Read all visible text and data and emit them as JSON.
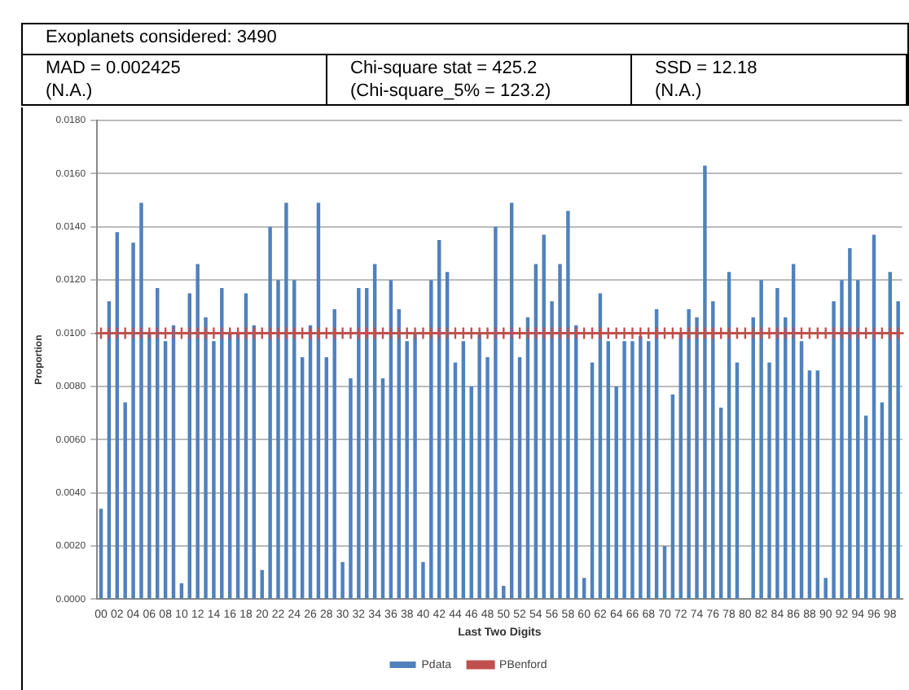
{
  "chart_data": {
    "type": "bar",
    "xlabel": "Last Two Digits",
    "ylabel": "Proportion",
    "annotations": [
      "Exoplanets considered: 3490",
      "MAD = 0.002425",
      "(N.A.)",
      "Chi-square stat = 425.2",
      "(Chi-square_5% = 123.2)",
      "SSD = 12.18",
      "(N.A.)"
    ],
    "categories": [
      "00",
      null,
      "02",
      null,
      "04",
      null,
      "06",
      null,
      "08",
      null,
      "10",
      null,
      "12",
      null,
      "14",
      null,
      "16",
      null,
      "18",
      null,
      "20",
      null,
      "22",
      null,
      "24",
      null,
      "26",
      null,
      "28",
      null,
      "30",
      null,
      "32",
      null,
      "34",
      null,
      "36",
      null,
      "38",
      null,
      "40",
      null,
      "42",
      null,
      "44",
      null,
      "46",
      null,
      "48",
      null,
      "50",
      null,
      "52",
      null,
      "54",
      null,
      "56",
      null,
      "58",
      null,
      "60",
      null,
      "62",
      null,
      "64",
      null,
      "66",
      null,
      "68",
      null,
      "70",
      null,
      "72",
      null,
      "74",
      null,
      "76",
      null,
      "78",
      null,
      "80",
      null,
      "82",
      null,
      "84",
      null,
      "86",
      null,
      "88",
      null,
      "90",
      null,
      "92",
      null,
      "94",
      null,
      "96",
      null,
      "98",
      null
    ],
    "series": [
      {
        "name": "Pdata",
        "color": "#4f81bd",
        "values": [
          0.0034,
          0.0112,
          0.0138,
          0.0074,
          0.0134,
          0.0149,
          0.01,
          0.0117,
          0.0097,
          0.0103,
          0.0006,
          0.0115,
          0.0126,
          0.0106,
          0.0097,
          0.0117,
          0.01,
          0.01,
          0.0115,
          0.0103,
          0.0011,
          0.014,
          0.012,
          0.0149,
          0.012,
          0.0091,
          0.0103,
          0.0149,
          0.0091,
          0.0109,
          0.0014,
          0.0083,
          0.0117,
          0.0117,
          0.0126,
          0.0083,
          0.012,
          0.0109,
          0.0097,
          0.01,
          0.0014,
          0.012,
          0.0135,
          0.0123,
          0.0089,
          0.0097,
          0.008,
          0.01,
          0.0091,
          0.014,
          0.0005,
          0.0149,
          0.0091,
          0.0106,
          0.0126,
          0.0137,
          0.0112,
          0.0126,
          0.0146,
          0.0103,
          0.0008,
          0.0089,
          0.0115,
          0.0097,
          0.008,
          0.0097,
          0.0097,
          0.0099,
          0.0097,
          0.0109,
          0.002,
          0.0077,
          0.01,
          0.0109,
          0.0106,
          0.0163,
          0.0112,
          0.0072,
          0.0123,
          0.0089,
          0,
          0.0106,
          0.012,
          0.0089,
          0.0117,
          0.0106,
          0.0126,
          0.0097,
          0.0086,
          0.0086,
          0.0008,
          0.0112,
          0.012,
          0.0132,
          0.012,
          0.0069,
          0.0137,
          0.0074,
          0.0123,
          0.0112
        ]
      },
      {
        "name": "PBenford",
        "type": "line",
        "color": "#c0504d",
        "marker": "cross",
        "values": [
          0.01,
          0.01,
          0.01,
          0.01,
          0.01,
          0.01,
          0.01,
          0.01,
          0.01,
          0.01,
          0.01,
          0.01,
          0.01,
          0.01,
          0.01,
          0.01,
          0.01,
          0.01,
          0.01,
          0.01,
          0.01,
          0.01,
          0.01,
          0.01,
          0.01,
          0.01,
          0.01,
          0.01,
          0.01,
          0.01,
          0.01,
          0.01,
          0.01,
          0.01,
          0.01,
          0.01,
          0.01,
          0.01,
          0.01,
          0.01,
          0.01,
          0.01,
          0.01,
          0.01,
          0.01,
          0.01,
          0.01,
          0.01,
          0.01,
          0.01,
          0.01,
          0.01,
          0.01,
          0.01,
          0.01,
          0.01,
          0.01,
          0.01,
          0.01,
          0.01,
          0.01,
          0.01,
          0.01,
          0.01,
          0.01,
          0.01,
          0.01,
          0.01,
          0.01,
          0.01,
          0.01,
          0.01,
          0.01,
          0.01,
          0.01,
          0.01,
          0.01,
          0.01,
          0.01,
          0.01,
          0.01,
          0.01,
          0.01,
          0.01,
          0.01,
          0.01,
          0.01,
          0.01,
          0.01,
          0.01,
          0.01,
          0.01,
          0.01,
          0.01,
          0.01,
          0.01,
          0.01,
          0.01,
          0.01,
          0.01
        ]
      }
    ],
    "ylim": [
      0,
      0.018
    ],
    "yticks": [
      {
        "value": 0,
        "label": "0.0000"
      },
      {
        "value": 0.002,
        "label": "0.0020"
      },
      {
        "value": 0.004,
        "label": "0.0040"
      },
      {
        "value": 0.006,
        "label": "0.0060"
      },
      {
        "value": 0.008,
        "label": "0.0080"
      },
      {
        "value": 0.01,
        "label": "0.0100"
      },
      {
        "value": 0.012,
        "label": "0.0120"
      },
      {
        "value": 0.014,
        "label": "0.0140"
      },
      {
        "value": 0.016,
        "label": "0.0160"
      },
      {
        "value": 0.018,
        "label": "0.0180"
      }
    ],
    "grid": "y",
    "legend": "bottom"
  }
}
